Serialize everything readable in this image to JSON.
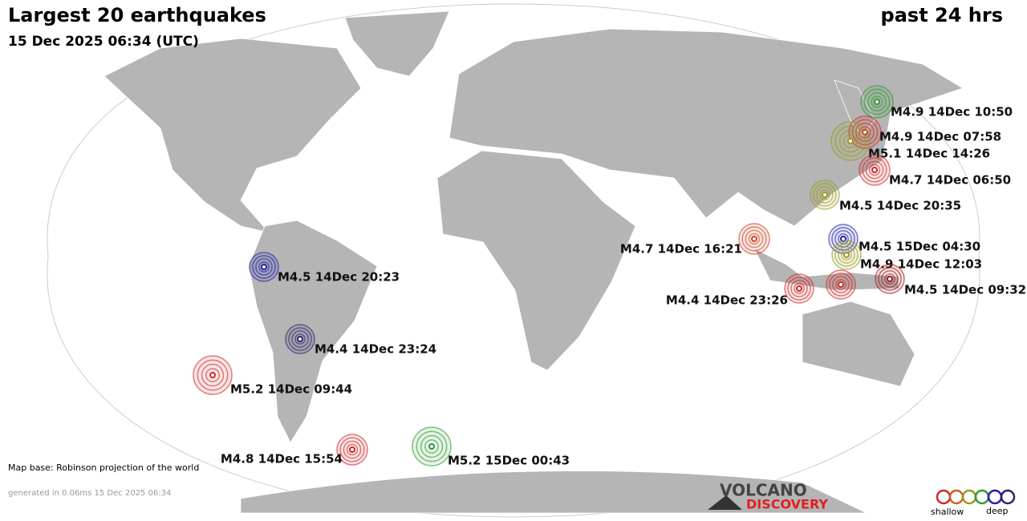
{
  "header": {
    "title": "Largest 20 earthquakes",
    "period": "past 24 hrs",
    "subtitle": "15 Dec 2025 06:34 (UTC)"
  },
  "quakes": [
    {
      "label": "M4.9 14Dec 10:50",
      "color": "#2e9a2e"
    },
    {
      "label": "M4.9 14Dec 07:58",
      "color": "#d02828"
    },
    {
      "label": "M5.1 14Dec 14:26",
      "color": "#9a9a20"
    },
    {
      "label": "M4.7 14Dec 06:50",
      "color": "#d02828"
    },
    {
      "label": "M4.5 14Dec 20:35",
      "color": "#9a9a20"
    },
    {
      "label": "M4.7 14Dec 16:21",
      "color": "#d04020"
    },
    {
      "label": "M4.5 15Dec 04:30",
      "color": "#2020b0"
    },
    {
      "label": "M4.9 14Dec 12:03",
      "color": "#9a9a20"
    },
    {
      "label": "M4.5 14Dec 09:32",
      "color": "#a01818"
    },
    {
      "label": "M4.4 14Dec 23:26",
      "color": "#d02828"
    },
    {
      "label": null,
      "color": "#d02828"
    },
    {
      "label": "M4.5 14Dec 20:23",
      "color": "#2020b0"
    },
    {
      "label": "M4.4 14Dec 23:24",
      "color": "#302070"
    },
    {
      "label": "M5.2 14Dec 09:44",
      "color": "#d02828"
    },
    {
      "label": "M4.8 14Dec 15:54",
      "color": "#d02828"
    },
    {
      "label": "M5.2 15Dec 00:43",
      "color": "#2e9a2e"
    }
  ],
  "footer": {
    "map_base": "Map base: Robinson projection of the world",
    "generated": "generated in 0.06ms 15 Dec 2025 06:34",
    "logo_top": "VOLCANO",
    "logo_bottom": "DISCOVERY",
    "legend_shallow": "shallow",
    "legend_deep": "deep"
  }
}
